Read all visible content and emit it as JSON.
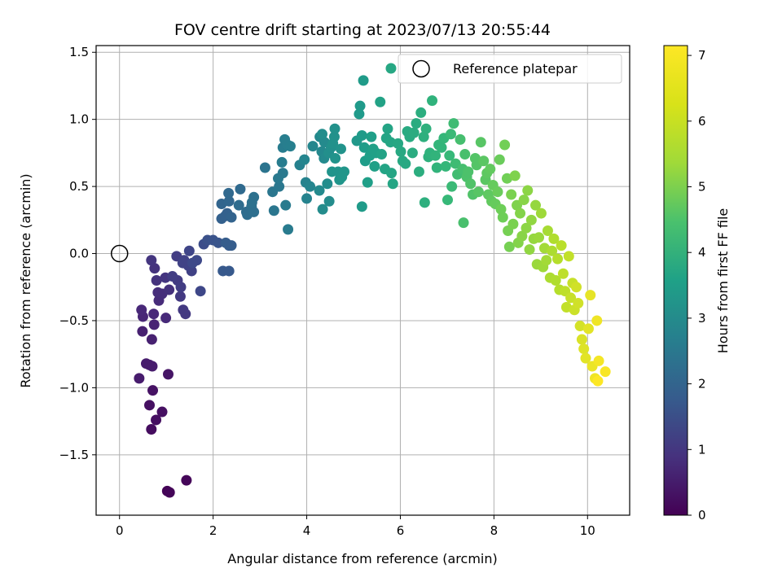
{
  "chart_data": {
    "type": "scatter",
    "title": "FOV centre drift starting at 2023/07/13 20:55:44",
    "xlabel": "Angular distance from reference (arcmin)",
    "ylabel": "Rotation from reference (arcmin)",
    "colorbar_label": "Hours from first FF file",
    "xlim": [
      -0.5,
      10.9
    ],
    "ylim": [
      -1.95,
      1.55
    ],
    "xticks": [
      0,
      2,
      4,
      6,
      8,
      10
    ],
    "yticks": [
      -1.5,
      -1.0,
      -0.5,
      0.0,
      0.5,
      1.0,
      1.5
    ],
    "xtick_labels": [
      "0",
      "2",
      "4",
      "6",
      "8",
      "10"
    ],
    "ytick_labels": [
      "−1.5",
      "−1.0",
      "−0.5",
      "0.0",
      "0.5",
      "1.0",
      "1.5"
    ],
    "colorbar_range": [
      0,
      7.15
    ],
    "colorbar_ticks": [
      0,
      1,
      2,
      3,
      4,
      5,
      6,
      7
    ],
    "colorbar_tick_labels": [
      "0",
      "1",
      "2",
      "3",
      "4",
      "5",
      "6",
      "7"
    ],
    "colormap": "viridis",
    "grid": true,
    "legend": {
      "position": "top-right",
      "entries": [
        "Reference platepar"
      ]
    },
    "reference_point": {
      "x": 0.0,
      "y": 0.0,
      "label": "Reference platepar"
    },
    "points": [
      [
        1.02,
        -1.77,
        0.05
      ],
      [
        1.07,
        -1.78,
        0.08
      ],
      [
        1.43,
        -1.69,
        0.12
      ],
      [
        0.68,
        -1.31,
        0.25
      ],
      [
        0.91,
        -1.18,
        0.3
      ],
      [
        0.64,
        -1.13,
        0.3
      ],
      [
        0.78,
        -1.24,
        0.28
      ],
      [
        0.71,
        -1.02,
        0.35
      ],
      [
        1.04,
        -0.9,
        0.4
      ],
      [
        0.42,
        -0.93,
        0.55
      ],
      [
        0.57,
        -0.82,
        0.55
      ],
      [
        0.64,
        -0.83,
        0.55
      ],
      [
        0.7,
        -0.84,
        0.55
      ],
      [
        0.49,
        -0.58,
        0.65
      ],
      [
        0.69,
        -0.64,
        0.65
      ],
      [
        0.74,
        -0.53,
        0.7
      ],
      [
        0.5,
        -0.47,
        0.75
      ],
      [
        0.47,
        -0.42,
        0.8
      ],
      [
        0.73,
        -0.45,
        0.8
      ],
      [
        0.99,
        -0.48,
        0.85
      ],
      [
        0.84,
        -0.35,
        0.9
      ],
      [
        0.82,
        -0.29,
        0.95
      ],
      [
        0.91,
        -0.3,
        0.95
      ],
      [
        1.06,
        -0.27,
        1.0
      ],
      [
        0.79,
        -0.2,
        1.05
      ],
      [
        0.75,
        -0.11,
        1.05
      ],
      [
        0.98,
        -0.18,
        1.1
      ],
      [
        0.68,
        -0.05,
        1.1
      ],
      [
        1.3,
        -0.32,
        1.2
      ],
      [
        1.41,
        -0.45,
        1.2
      ],
      [
        1.36,
        -0.42,
        1.2
      ],
      [
        1.24,
        -0.2,
        1.25
      ],
      [
        1.31,
        -0.25,
        1.3
      ],
      [
        1.13,
        -0.17,
        1.3
      ],
      [
        1.22,
        -0.02,
        1.3
      ],
      [
        1.54,
        -0.13,
        1.4
      ],
      [
        1.38,
        -0.05,
        1.4
      ],
      [
        1.47,
        -0.09,
        1.45
      ],
      [
        1.35,
        -0.07,
        1.45
      ],
      [
        1.49,
        0.02,
        1.5
      ],
      [
        1.73,
        -0.28,
        1.55
      ],
      [
        1.65,
        -0.05,
        1.6
      ],
      [
        1.56,
        -0.07,
        1.6
      ],
      [
        1.8,
        0.07,
        1.7
      ],
      [
        1.88,
        0.1,
        1.8
      ],
      [
        2.0,
        0.1,
        1.85
      ],
      [
        2.11,
        0.08,
        1.9
      ],
      [
        2.21,
        -0.13,
        2.0
      ],
      [
        2.34,
        -0.13,
        2.0
      ],
      [
        2.34,
        0.06,
        2.05
      ],
      [
        2.27,
        0.08,
        2.1
      ],
      [
        2.39,
        0.06,
        2.1
      ],
      [
        2.18,
        0.26,
        2.2
      ],
      [
        2.3,
        0.3,
        2.2
      ],
      [
        2.26,
        0.28,
        2.2
      ],
      [
        2.39,
        0.27,
        2.25
      ],
      [
        2.18,
        0.37,
        2.3
      ],
      [
        2.34,
        0.39,
        2.35
      ],
      [
        2.33,
        0.45,
        2.4
      ],
      [
        2.58,
        0.48,
        2.45
      ],
      [
        2.55,
        0.36,
        2.5
      ],
      [
        2.71,
        0.31,
        2.5
      ],
      [
        2.73,
        0.29,
        2.55
      ],
      [
        2.87,
        0.31,
        2.6
      ],
      [
        2.82,
        0.35,
        2.6
      ],
      [
        2.87,
        0.42,
        2.65
      ],
      [
        2.83,
        0.38,
        2.65
      ],
      [
        3.11,
        0.64,
        2.75
      ],
      [
        3.3,
        0.32,
        2.8
      ],
      [
        3.27,
        0.46,
        2.8
      ],
      [
        3.41,
        0.5,
        2.85
      ],
      [
        3.39,
        0.56,
        2.9
      ],
      [
        3.49,
        0.6,
        2.9
      ],
      [
        3.55,
        0.36,
        2.95
      ],
      [
        3.6,
        0.18,
        2.95
      ],
      [
        3.47,
        0.68,
        3.0
      ],
      [
        3.49,
        0.79,
        3.0
      ],
      [
        3.53,
        0.85,
        3.05
      ],
      [
        3.59,
        0.81,
        3.05
      ],
      [
        3.65,
        0.8,
        3.1
      ],
      [
        3.85,
        0.66,
        3.15
      ],
      [
        3.98,
        0.53,
        3.2
      ],
      [
        4.0,
        0.41,
        3.2
      ],
      [
        4.07,
        0.5,
        3.25
      ],
      [
        3.95,
        0.7,
        3.25
      ],
      [
        4.13,
        0.8,
        3.3
      ],
      [
        4.28,
        0.87,
        3.35
      ],
      [
        4.32,
        0.76,
        3.35
      ],
      [
        4.38,
        0.83,
        3.4
      ],
      [
        4.37,
        0.71,
        3.4
      ],
      [
        4.27,
        0.47,
        3.4
      ],
      [
        4.34,
        0.33,
        3.45
      ],
      [
        4.48,
        0.39,
        3.45
      ],
      [
        4.44,
        0.52,
        3.5
      ],
      [
        4.33,
        0.89,
        3.5
      ],
      [
        4.47,
        0.75,
        3.55
      ],
      [
        4.52,
        0.79,
        3.55
      ],
      [
        4.56,
        0.82,
        3.6
      ],
      [
        4.59,
        0.87,
        3.6
      ],
      [
        4.6,
        0.93,
        3.6
      ],
      [
        4.61,
        0.71,
        3.65
      ],
      [
        4.73,
        0.78,
        3.65
      ],
      [
        4.54,
        0.61,
        3.7
      ],
      [
        4.67,
        0.61,
        3.7
      ],
      [
        4.7,
        0.55,
        3.7
      ],
      [
        4.75,
        0.57,
        3.75
      ],
      [
        4.8,
        0.61,
        3.75
      ],
      [
        5.07,
        0.84,
        3.8
      ],
      [
        5.12,
        1.04,
        3.85
      ],
      [
        5.14,
        1.1,
        3.85
      ],
      [
        5.18,
        0.35,
        3.9
      ],
      [
        5.18,
        0.88,
        3.9
      ],
      [
        5.21,
        1.29,
        3.9
      ],
      [
        5.23,
        0.79,
        3.95
      ],
      [
        5.25,
        0.69,
        3.95
      ],
      [
        5.3,
        0.53,
        4.0
      ],
      [
        5.35,
        0.73,
        4.0
      ],
      [
        5.38,
        0.87,
        4.0
      ],
      [
        5.42,
        0.78,
        4.05
      ],
      [
        5.45,
        0.65,
        4.05
      ],
      [
        5.48,
        0.75,
        4.05
      ],
      [
        5.57,
        1.13,
        4.1
      ],
      [
        5.6,
        0.74,
        4.1
      ],
      [
        5.67,
        0.63,
        4.15
      ],
      [
        5.7,
        0.86,
        4.15
      ],
      [
        5.73,
        0.93,
        4.15
      ],
      [
        5.79,
        0.83,
        4.2
      ],
      [
        5.81,
        0.6,
        4.2
      ],
      [
        5.84,
        0.52,
        4.2
      ],
      [
        5.8,
        1.38,
        4.25
      ],
      [
        5.95,
        0.82,
        4.25
      ],
      [
        6.01,
        0.76,
        4.3
      ],
      [
        6.05,
        0.69,
        4.3
      ],
      [
        6.11,
        0.67,
        4.3
      ],
      [
        6.15,
        0.91,
        4.35
      ],
      [
        6.2,
        0.87,
        4.35
      ],
      [
        6.26,
        0.75,
        4.4
      ],
      [
        6.29,
        0.9,
        4.4
      ],
      [
        6.34,
        0.97,
        4.4
      ],
      [
        6.4,
        0.61,
        4.45
      ],
      [
        6.44,
        1.05,
        4.45
      ],
      [
        6.5,
        0.87,
        4.5
      ],
      [
        6.52,
        0.38,
        4.5
      ],
      [
        6.55,
        0.93,
        4.55
      ],
      [
        6.6,
        0.72,
        4.55
      ],
      [
        6.63,
        0.75,
        4.6
      ],
      [
        6.68,
        1.14,
        4.6
      ],
      [
        6.75,
        0.73,
        4.65
      ],
      [
        6.78,
        0.64,
        4.65
      ],
      [
        6.82,
        0.81,
        4.7
      ],
      [
        6.88,
        0.79,
        4.7
      ],
      [
        6.93,
        0.86,
        4.75
      ],
      [
        6.97,
        0.65,
        4.75
      ],
      [
        7.01,
        0.4,
        4.8
      ],
      [
        7.05,
        0.73,
        4.8
      ],
      [
        7.08,
        0.89,
        4.85
      ],
      [
        7.1,
        0.5,
        4.85
      ],
      [
        7.14,
        0.97,
        4.9
      ],
      [
        7.18,
        0.67,
        4.9
      ],
      [
        7.22,
        0.59,
        4.95
      ],
      [
        7.28,
        0.85,
        5.0
      ],
      [
        7.33,
        0.63,
        5.0
      ],
      [
        7.35,
        0.23,
        5.05
      ],
      [
        7.38,
        0.74,
        5.05
      ],
      [
        7.42,
        0.57,
        5.1
      ],
      [
        7.45,
        0.61,
        5.1
      ],
      [
        7.5,
        0.52,
        5.15
      ],
      [
        7.55,
        0.44,
        5.15
      ],
      [
        7.6,
        0.71,
        5.2
      ],
      [
        7.63,
        0.66,
        5.2
      ],
      [
        7.67,
        0.46,
        5.25
      ],
      [
        7.72,
        0.83,
        5.25
      ],
      [
        7.78,
        0.69,
        5.3
      ],
      [
        7.82,
        0.55,
        5.3
      ],
      [
        7.85,
        0.6,
        5.35
      ],
      [
        7.88,
        0.44,
        5.35
      ],
      [
        7.92,
        0.63,
        5.4
      ],
      [
        7.95,
        0.39,
        5.4
      ],
      [
        7.98,
        0.51,
        5.45
      ],
      [
        8.03,
        0.37,
        5.45
      ],
      [
        8.08,
        0.46,
        5.5
      ],
      [
        8.12,
        0.7,
        5.5
      ],
      [
        8.15,
        0.33,
        5.55
      ],
      [
        8.19,
        0.27,
        5.55
      ],
      [
        8.23,
        0.81,
        5.6
      ],
      [
        8.28,
        0.56,
        5.6
      ],
      [
        8.3,
        0.17,
        5.65
      ],
      [
        8.33,
        0.05,
        5.65
      ],
      [
        8.37,
        0.44,
        5.7
      ],
      [
        8.41,
        0.22,
        5.7
      ],
      [
        8.45,
        0.58,
        5.75
      ],
      [
        8.49,
        0.36,
        5.75
      ],
      [
        8.52,
        0.08,
        5.8
      ],
      [
        8.56,
        0.3,
        5.8
      ],
      [
        8.6,
        0.13,
        5.85
      ],
      [
        8.64,
        0.4,
        5.85
      ],
      [
        8.69,
        0.19,
        5.9
      ],
      [
        8.72,
        0.47,
        5.9
      ],
      [
        8.76,
        0.03,
        5.95
      ],
      [
        8.8,
        0.25,
        5.95
      ],
      [
        8.85,
        0.11,
        6.0
      ],
      [
        8.89,
        0.36,
        6.0
      ],
      [
        8.92,
        -0.08,
        6.05
      ],
      [
        8.96,
        0.12,
        6.05
      ],
      [
        9.01,
        0.3,
        6.1
      ],
      [
        9.05,
        -0.1,
        6.1
      ],
      [
        9.08,
        0.04,
        6.15
      ],
      [
        9.12,
        -0.05,
        6.15
      ],
      [
        9.15,
        0.17,
        6.2
      ],
      [
        9.2,
        -0.18,
        6.25
      ],
      [
        9.24,
        0.02,
        6.25
      ],
      [
        9.28,
        0.11,
        6.3
      ],
      [
        9.32,
        -0.2,
        6.3
      ],
      [
        9.36,
        -0.04,
        6.35
      ],
      [
        9.4,
        -0.27,
        6.35
      ],
      [
        9.44,
        0.06,
        6.4
      ],
      [
        9.48,
        -0.15,
        6.45
      ],
      [
        9.52,
        -0.28,
        6.45
      ],
      [
        9.55,
        -0.4,
        6.5
      ],
      [
        9.6,
        -0.02,
        6.5
      ],
      [
        9.64,
        -0.33,
        6.55
      ],
      [
        9.68,
        -0.22,
        6.55
      ],
      [
        9.72,
        -0.42,
        6.6
      ],
      [
        9.76,
        -0.25,
        6.65
      ],
      [
        9.8,
        -0.37,
        6.65
      ],
      [
        9.84,
        -0.54,
        6.7
      ],
      [
        9.88,
        -0.64,
        6.75
      ],
      [
        9.92,
        -0.71,
        6.8
      ],
      [
        9.96,
        -0.78,
        6.85
      ],
      [
        10.02,
        -0.56,
        6.85
      ],
      [
        10.06,
        -0.31,
        6.9
      ],
      [
        10.1,
        -0.84,
        6.95
      ],
      [
        10.16,
        -0.93,
        7.0
      ],
      [
        10.2,
        -0.5,
        7.0
      ],
      [
        10.24,
        -0.8,
        7.05
      ],
      [
        10.38,
        -0.88,
        7.1
      ],
      [
        10.22,
        -0.95,
        7.15
      ]
    ]
  }
}
